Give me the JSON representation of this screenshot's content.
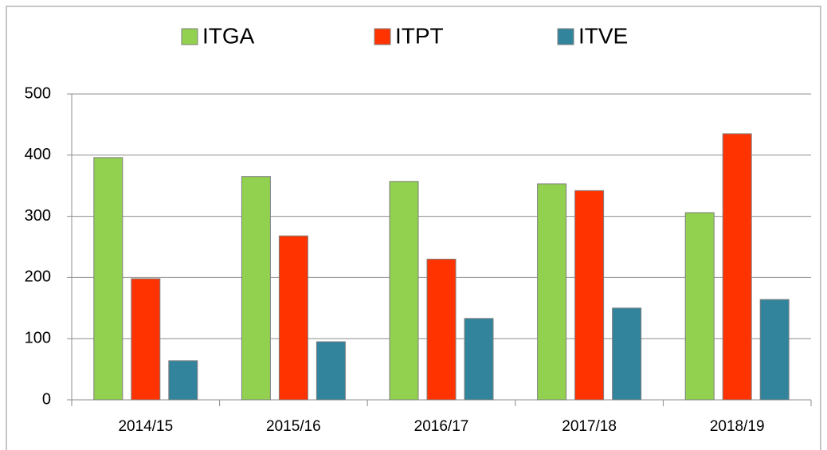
{
  "chart_data": {
    "type": "bar",
    "categories": [
      "2014/15",
      "2015/16",
      "2016/17",
      "2017/18",
      "2018/19"
    ],
    "series": [
      {
        "name": "ITGA",
        "color": "#92d050",
        "values": [
          396,
          365,
          357,
          353,
          306
        ]
      },
      {
        "name": "ITPT",
        "color": "#ff3300",
        "values": [
          198,
          268,
          230,
          342,
          435
        ]
      },
      {
        "name": "ITVE",
        "color": "#31849b",
        "values": [
          64,
          95,
          133,
          150,
          164
        ]
      }
    ],
    "ylim": [
      0,
      500
    ],
    "yticks": [
      0,
      100,
      200,
      300,
      400,
      500
    ],
    "grid": true,
    "legend": "top"
  }
}
